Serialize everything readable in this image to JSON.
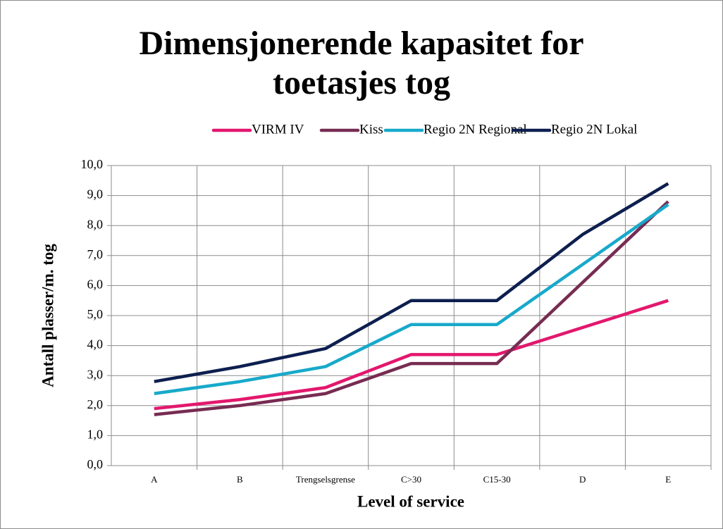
{
  "chart_data": {
    "type": "line",
    "title": "Dimensjonerende kapasitet for toetasjes tog",
    "x_label": "Level of service",
    "y_label": "Antall plasser/m. tog",
    "categories": [
      "A",
      "B",
      "Trengselsgrense",
      "C>30",
      "C15-30",
      "D",
      "E"
    ],
    "series": [
      {
        "name": "VIRM IV",
        "color": "#e3176d",
        "values": [
          1.9,
          2.2,
          2.6,
          3.7,
          3.7,
          4.6,
          5.5
        ]
      },
      {
        "name": "Kiss",
        "color": "#772c52",
        "values": [
          1.7,
          2.0,
          2.4,
          3.4,
          3.4,
          6.1,
          8.8
        ]
      },
      {
        "name": "Regio 2N Regional",
        "color": "#18a9ca",
        "values": [
          2.4,
          2.8,
          3.3,
          4.7,
          4.7,
          6.7,
          8.7
        ]
      },
      {
        "name": "Regio 2N Lokal",
        "color": "#0d1f4f",
        "values": [
          2.8,
          3.3,
          3.9,
          5.5,
          5.5,
          7.7,
          9.4
        ]
      }
    ],
    "ylim": [
      0,
      10
    ],
    "yticks": [
      {
        "value": 0,
        "label": "0,0"
      },
      {
        "value": 1,
        "label": "1,0"
      },
      {
        "value": 2,
        "label": "2,0"
      },
      {
        "value": 3,
        "label": "3,0"
      },
      {
        "value": 4,
        "label": "4,0"
      },
      {
        "value": 5,
        "label": "5,0"
      },
      {
        "value": 6,
        "label": "6,0"
      },
      {
        "value": 7,
        "label": "7,0"
      },
      {
        "value": 8,
        "label": "8,0"
      },
      {
        "value": 9,
        "label": "9,0"
      },
      {
        "value": 10,
        "label": "10,0"
      }
    ],
    "grid": true,
    "legend": "top"
  }
}
